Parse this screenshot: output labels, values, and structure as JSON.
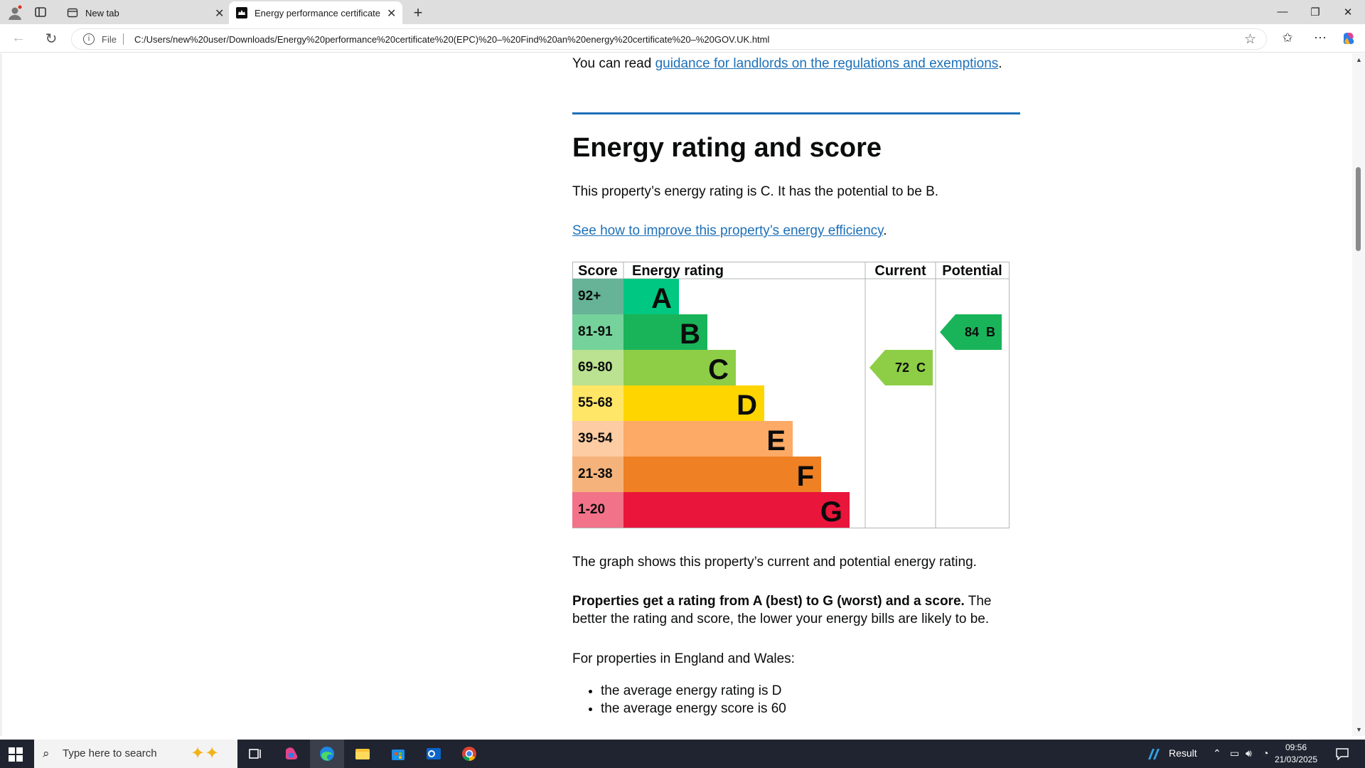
{
  "browser": {
    "tabs": [
      {
        "label": "New tab"
      },
      {
        "label": "Energy performance certificate (EPC) – Find an energy certificate – GOV.UK"
      }
    ],
    "address": {
      "scheme": "File",
      "url": "C:/Users/new%20user/Downloads/Energy%20performance%20certificate%20(EPC)%20–%20Find%20an%20energy%20certificate%20–%20GOV.UK.html"
    }
  },
  "page": {
    "guidance": {
      "prefix": "You can read ",
      "link": "guidance for landlords on the regulations and exemptions",
      "suffix": "."
    },
    "heading": "Energy rating and score",
    "rating_sentence": "This property’s energy rating is C. It has the potential to be B.",
    "improve": {
      "link": "See how to improve this property’s energy efficiency",
      "suffix": "."
    },
    "graph_caption": "The graph shows this property’s current and potential energy rating.",
    "properties": {
      "bold": "Properties get a rating from A (best) to G (worst) and a score.",
      "rest": " The better the rating and score, the lower your energy bills are likely to be."
    },
    "england_intro": "For properties in England and Wales:",
    "england_list": [
      "the average energy rating is D",
      "the average energy score is 60"
    ]
  },
  "chart_data": {
    "type": "table",
    "headers": {
      "score": "Score",
      "rating": "Energy rating",
      "current": "Current",
      "potential": "Potential"
    },
    "bands": [
      {
        "letter": "A",
        "score": "92+",
        "color": "#008054",
        "score_bg": "#66b398",
        "bar": "#00c781"
      },
      {
        "letter": "B",
        "score": "81-91",
        "color": "#19b459",
        "score_bg": "#75d29b",
        "bar": "#19b459"
      },
      {
        "letter": "C",
        "score": "69-80",
        "color": "#8dce46",
        "score_bg": "#bbe290",
        "bar": "#8dce46"
      },
      {
        "letter": "D",
        "score": "55-68",
        "color": "#ffd500",
        "score_bg": "#ffe666",
        "bar": "#ffd500"
      },
      {
        "letter": "E",
        "score": "39-54",
        "color": "#fcaa65",
        "score_bg": "#fdcca3",
        "bar": "#fcaa65"
      },
      {
        "letter": "F",
        "score": "21-38",
        "color": "#ef8023",
        "score_bg": "#f5b37b",
        "bar": "#ef8023"
      },
      {
        "letter": "G",
        "score": "1-20",
        "color": "#e9153b",
        "score_bg": "#f27389",
        "bar": "#e9153b"
      }
    ],
    "current": {
      "score": 72,
      "letter": "C",
      "label": "72  C",
      "color": "#8dce46"
    },
    "potential": {
      "score": 84,
      "letter": "B",
      "label": "84  B",
      "color": "#19b459"
    }
  },
  "taskbar": {
    "search_placeholder": "Type here to search",
    "tray_label": "Result",
    "time": "09:56",
    "date": "21/03/2025"
  }
}
